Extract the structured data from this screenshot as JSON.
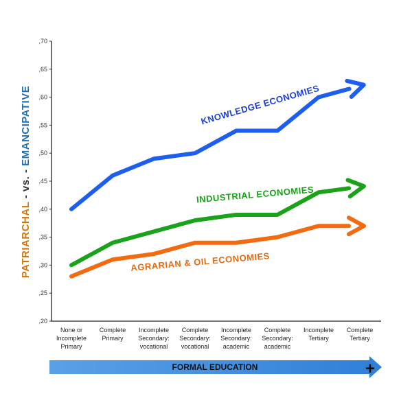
{
  "chart_data": {
    "type": "line",
    "categories": [
      [
        "None or",
        "Incomplete",
        "Primary"
      ],
      [
        "Complete",
        "Primary"
      ],
      [
        "Incomplete",
        "Secondary:",
        "vocational"
      ],
      [
        "Complete",
        "Secondary:",
        "vocational"
      ],
      [
        "Incomplete",
        "Secondary:",
        "academic"
      ],
      [
        "Complete",
        "Secondary:",
        "academic"
      ],
      [
        "Incomplete",
        "Tertiary"
      ],
      [
        "Complete",
        "Tertiary"
      ]
    ],
    "yticks": [
      ",20",
      ",25",
      ",30",
      ",35",
      ",40",
      ",45",
      ",50",
      ",55",
      ",60",
      ",65",
      ",70"
    ],
    "ylim": [
      0.2,
      0.7
    ],
    "ylabel": {
      "part1": "PATRIARCHAL",
      "part2": " - vs. - ",
      "part3": "EMANCIPATIVE",
      "color1": "#d4760a",
      "color2": "#333333",
      "color3": "#1f6fb5"
    },
    "xbar_label": "FORMAL EDUCATION",
    "xbar_plus": "+",
    "series": [
      {
        "name": "KNOWLEDGE  ECONOMIES",
        "color": "#1d5ef0",
        "label_color": "#1d3fd6",
        "values": [
          0.4,
          0.46,
          0.49,
          0.5,
          0.54,
          0.54,
          0.6,
          0.62
        ]
      },
      {
        "name": "INDUSTRIAL  ECONOMIES",
        "color": "#1aa31a",
        "label_color": "#17a317",
        "values": [
          0.3,
          0.34,
          0.36,
          0.38,
          0.39,
          0.39,
          0.43,
          0.44
        ]
      },
      {
        "name": "AGRARIAN & OIL  ECONOMIES",
        "color": "#f26b10",
        "label_color": "#e46a12",
        "values": [
          0.28,
          0.31,
          0.32,
          0.34,
          0.34,
          0.35,
          0.37,
          0.37
        ]
      }
    ],
    "grid": false,
    "legend": "inline labels"
  }
}
